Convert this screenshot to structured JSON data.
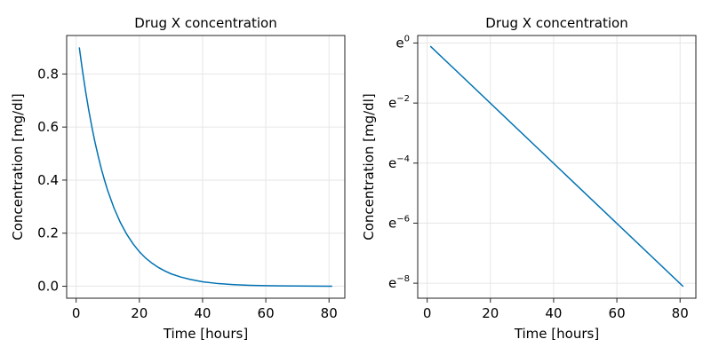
{
  "chart_data": [
    {
      "type": "line",
      "title": "Drug X concentration",
      "xlabel": "Time [hours]",
      "ylabel": "Concentration [mg/dl]",
      "xlim": [
        -3,
        85
      ],
      "ylim": [
        -0.045,
        0.945
      ],
      "yscale": "linear",
      "xticks": [
        0,
        20,
        40,
        60,
        80
      ],
      "yticks": [
        0.0,
        0.2,
        0.4,
        0.6,
        0.8
      ],
      "yticklabels": [
        "0.0",
        "0.2",
        "0.4",
        "0.6",
        "0.8"
      ],
      "grid": true,
      "legend": "none",
      "series": [
        {
          "color": "#0072b2",
          "x": [
            1,
            2,
            3,
            4,
            5,
            6,
            7,
            8,
            9,
            10,
            12,
            14,
            16,
            18,
            20,
            22,
            24,
            26,
            28,
            30,
            33,
            36,
            40,
            45,
            50,
            55,
            60,
            65,
            70,
            75,
            81
          ],
          "y": [
            0.9,
            0.813,
            0.734,
            0.663,
            0.599,
            0.541,
            0.489,
            0.441,
            0.399,
            0.36,
            0.294,
            0.24,
            0.196,
            0.16,
            0.13,
            0.106,
            0.087,
            0.071,
            0.058,
            0.047,
            0.035,
            0.026,
            0.017,
            0.01,
            0.0062,
            0.0037,
            0.0023,
            0.0014,
            0.0008,
            0.0005,
            0.0003
          ]
        }
      ]
    },
    {
      "type": "line",
      "title": "Drug X concentration",
      "xlabel": "Time [hours]",
      "ylabel": "Concentration [mg/dl]",
      "xlim": [
        -3,
        85
      ],
      "ylim": [
        -8.5,
        0.25
      ],
      "yscale": "log (base e)",
      "xticks": [
        0,
        20,
        40,
        60,
        80
      ],
      "yticks": [
        0,
        -2,
        -4,
        -6,
        -8
      ],
      "yticklabels": [
        {
          "base": "e",
          "exp": "0"
        },
        {
          "base": "e",
          "exp": "−2"
        },
        {
          "base": "e",
          "exp": "−4"
        },
        {
          "base": "e",
          "exp": "−6"
        },
        {
          "base": "e",
          "exp": "−8"
        }
      ],
      "grid": true,
      "legend": "none",
      "series": [
        {
          "color": "#0072b2",
          "x": [
            1,
            81
          ],
          "y": [
            0.9,
            0.0003
          ]
        }
      ]
    }
  ]
}
